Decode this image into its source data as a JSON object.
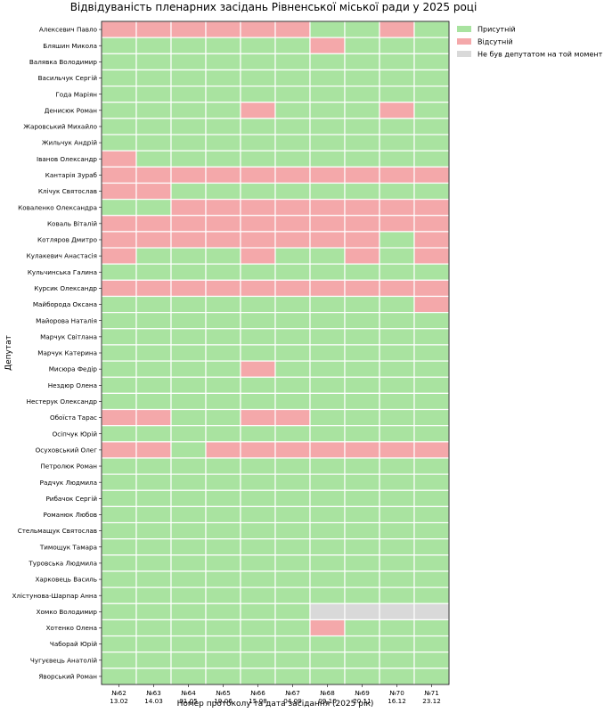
{
  "chart_data": {
    "type": "heatmap",
    "title": "Відвідуваність пленарних засідань Рівненської міської ради у 2025 році",
    "xlabel": "Номер протоколу та дата засідання (2025 рік)",
    "ylabel": "Депутат",
    "columns": [
      {
        "protocol": "№62",
        "date": "13.02"
      },
      {
        "protocol": "№63",
        "date": "14.03"
      },
      {
        "protocol": "№64",
        "date": "01.05"
      },
      {
        "protocol": "№65",
        "date": "19.06"
      },
      {
        "protocol": "№66",
        "date": "15.08"
      },
      {
        "protocol": "№67",
        "date": "04.09"
      },
      {
        "protocol": "№68",
        "date": "09.10"
      },
      {
        "protocol": "№69",
        "date": "20.11"
      },
      {
        "protocol": "№70",
        "date": "16.12"
      },
      {
        "protocol": "№71",
        "date": "23.12"
      }
    ],
    "legend": [
      {
        "key": "P",
        "label": "Присутній",
        "color": "#a9e3a0"
      },
      {
        "key": "A",
        "label": "Відсутній",
        "color": "#f4a8aa"
      },
      {
        "key": "N",
        "label": "Не був депутатом на той момент",
        "color": "#d9d9d9"
      }
    ],
    "legend_position": "top-right",
    "rows": [
      {
        "name": "Алексевич Павло",
        "values": [
          "A",
          "A",
          "A",
          "A",
          "A",
          "A",
          "P",
          "P",
          "A",
          "P"
        ]
      },
      {
        "name": "Бляшин Микола",
        "values": [
          "P",
          "P",
          "P",
          "P",
          "P",
          "P",
          "A",
          "P",
          "P",
          "P"
        ]
      },
      {
        "name": "Валявка Володимир",
        "values": [
          "P",
          "P",
          "P",
          "P",
          "P",
          "P",
          "P",
          "P",
          "P",
          "P"
        ]
      },
      {
        "name": "Васильчук Сергій",
        "values": [
          "P",
          "P",
          "P",
          "P",
          "P",
          "P",
          "P",
          "P",
          "P",
          "P"
        ]
      },
      {
        "name": "Года Маріян",
        "values": [
          "P",
          "P",
          "P",
          "P",
          "P",
          "P",
          "P",
          "P",
          "P",
          "P"
        ]
      },
      {
        "name": "Денисюк Роман",
        "values": [
          "P",
          "P",
          "P",
          "P",
          "A",
          "P",
          "P",
          "P",
          "A",
          "P"
        ]
      },
      {
        "name": "Жаровський Михайло",
        "values": [
          "P",
          "P",
          "P",
          "P",
          "P",
          "P",
          "P",
          "P",
          "P",
          "P"
        ]
      },
      {
        "name": "Жильчук Андрій",
        "values": [
          "P",
          "P",
          "P",
          "P",
          "P",
          "P",
          "P",
          "P",
          "P",
          "P"
        ]
      },
      {
        "name": "Іванов Олександр",
        "values": [
          "A",
          "P",
          "P",
          "P",
          "P",
          "P",
          "P",
          "P",
          "P",
          "P"
        ]
      },
      {
        "name": "Кантарія Зураб",
        "values": [
          "A",
          "A",
          "A",
          "A",
          "A",
          "A",
          "A",
          "A",
          "A",
          "A"
        ]
      },
      {
        "name": "Клічук Святослав",
        "values": [
          "A",
          "A",
          "P",
          "P",
          "P",
          "P",
          "P",
          "P",
          "P",
          "P"
        ]
      },
      {
        "name": "Коваленко Олександра",
        "values": [
          "P",
          "P",
          "A",
          "A",
          "A",
          "A",
          "A",
          "A",
          "A",
          "A"
        ]
      },
      {
        "name": "Коваль Віталій",
        "values": [
          "A",
          "A",
          "A",
          "A",
          "A",
          "A",
          "A",
          "A",
          "A",
          "A"
        ]
      },
      {
        "name": "Котляров Дмитро",
        "values": [
          "A",
          "A",
          "A",
          "A",
          "A",
          "A",
          "A",
          "A",
          "P",
          "A"
        ]
      },
      {
        "name": "Кулакевич Анастасія",
        "values": [
          "A",
          "P",
          "P",
          "P",
          "A",
          "P",
          "P",
          "A",
          "P",
          "A"
        ]
      },
      {
        "name": "Кульчинська Галина",
        "values": [
          "P",
          "P",
          "P",
          "P",
          "P",
          "P",
          "P",
          "P",
          "P",
          "P"
        ]
      },
      {
        "name": "Курсик Олександр",
        "values": [
          "A",
          "A",
          "A",
          "A",
          "A",
          "A",
          "A",
          "A",
          "A",
          "A"
        ]
      },
      {
        "name": "Майборода Оксана",
        "values": [
          "P",
          "P",
          "P",
          "P",
          "P",
          "P",
          "P",
          "P",
          "P",
          "A"
        ]
      },
      {
        "name": "Майорова Наталія",
        "values": [
          "P",
          "P",
          "P",
          "P",
          "P",
          "P",
          "P",
          "P",
          "P",
          "P"
        ]
      },
      {
        "name": "Марчук Світлана",
        "values": [
          "P",
          "P",
          "P",
          "P",
          "P",
          "P",
          "P",
          "P",
          "P",
          "P"
        ]
      },
      {
        "name": "Марчук Катерина",
        "values": [
          "P",
          "P",
          "P",
          "P",
          "P",
          "P",
          "P",
          "P",
          "P",
          "P"
        ]
      },
      {
        "name": "Мисюра Федір",
        "values": [
          "P",
          "P",
          "P",
          "P",
          "A",
          "P",
          "P",
          "P",
          "P",
          "P"
        ]
      },
      {
        "name": "Нездюр Олена",
        "values": [
          "P",
          "P",
          "P",
          "P",
          "P",
          "P",
          "P",
          "P",
          "P",
          "P"
        ]
      },
      {
        "name": "Нестерук Олександр",
        "values": [
          "P",
          "P",
          "P",
          "P",
          "P",
          "P",
          "P",
          "P",
          "P",
          "P"
        ]
      },
      {
        "name": "Обоїста Тарас",
        "values": [
          "A",
          "A",
          "P",
          "P",
          "A",
          "A",
          "P",
          "P",
          "P",
          "P"
        ]
      },
      {
        "name": "Осіпчук Юрій",
        "values": [
          "P",
          "P",
          "P",
          "P",
          "P",
          "P",
          "P",
          "P",
          "P",
          "P"
        ]
      },
      {
        "name": "Осуховський Олег",
        "values": [
          "A",
          "A",
          "P",
          "A",
          "A",
          "A",
          "A",
          "A",
          "A",
          "A"
        ]
      },
      {
        "name": "Петролюк Роман",
        "values": [
          "P",
          "P",
          "P",
          "P",
          "P",
          "P",
          "P",
          "P",
          "P",
          "P"
        ]
      },
      {
        "name": "Радчук Людмила",
        "values": [
          "P",
          "P",
          "P",
          "P",
          "P",
          "P",
          "P",
          "P",
          "P",
          "P"
        ]
      },
      {
        "name": "Рибачок Сергій",
        "values": [
          "P",
          "P",
          "P",
          "P",
          "P",
          "P",
          "P",
          "P",
          "P",
          "P"
        ]
      },
      {
        "name": "Романюк Любов",
        "values": [
          "P",
          "P",
          "P",
          "P",
          "P",
          "P",
          "P",
          "P",
          "P",
          "P"
        ]
      },
      {
        "name": "Стельмащук Святослав",
        "values": [
          "P",
          "P",
          "P",
          "P",
          "P",
          "P",
          "P",
          "P",
          "P",
          "P"
        ]
      },
      {
        "name": "Тимощук Тамара",
        "values": [
          "P",
          "P",
          "P",
          "P",
          "P",
          "P",
          "P",
          "P",
          "P",
          "P"
        ]
      },
      {
        "name": "Туровська Людмила",
        "values": [
          "P",
          "P",
          "P",
          "P",
          "P",
          "P",
          "P",
          "P",
          "P",
          "P"
        ]
      },
      {
        "name": "Харковець Василь",
        "values": [
          "P",
          "P",
          "P",
          "P",
          "P",
          "P",
          "P",
          "P",
          "P",
          "P"
        ]
      },
      {
        "name": "Хлістунова-Шарпар Анна",
        "values": [
          "P",
          "P",
          "P",
          "P",
          "P",
          "P",
          "P",
          "P",
          "P",
          "P"
        ]
      },
      {
        "name": "Хомко Володимир",
        "values": [
          "P",
          "P",
          "P",
          "P",
          "P",
          "P",
          "N",
          "N",
          "N",
          "N"
        ]
      },
      {
        "name": "Хотенко Олена",
        "values": [
          "P",
          "P",
          "P",
          "P",
          "P",
          "P",
          "A",
          "P",
          "P",
          "P"
        ]
      },
      {
        "name": "Чаборай Юрій",
        "values": [
          "P",
          "P",
          "P",
          "P",
          "P",
          "P",
          "P",
          "P",
          "P",
          "P"
        ]
      },
      {
        "name": "Чугуєвець Анатолій",
        "values": [
          "P",
          "P",
          "P",
          "P",
          "P",
          "P",
          "P",
          "P",
          "P",
          "P"
        ]
      },
      {
        "name": "Яворський Роман",
        "values": [
          "P",
          "P",
          "P",
          "P",
          "P",
          "P",
          "P",
          "P",
          "P",
          "P"
        ]
      }
    ]
  }
}
